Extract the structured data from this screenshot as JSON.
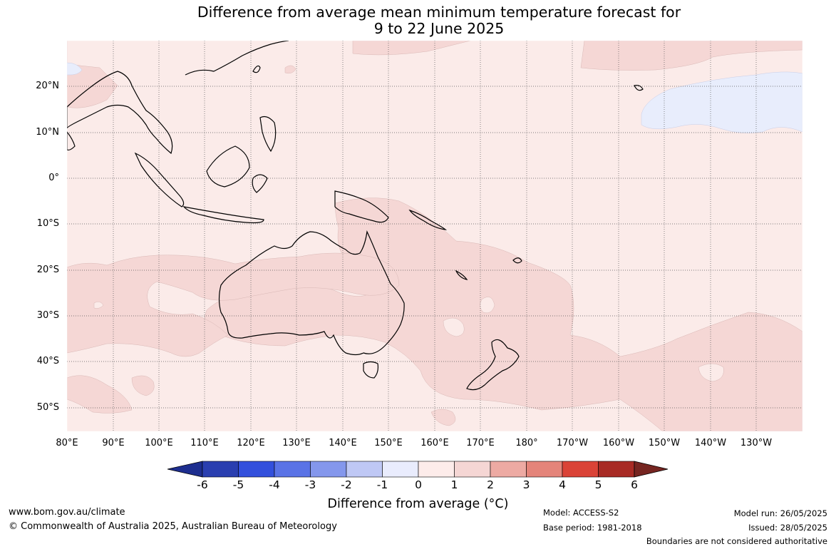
{
  "title_line1": "Difference from average mean minimum temperature forecast for",
  "title_line2": "9 to 22 June 2025",
  "lat_labels": [
    "20°N",
    "10°N",
    "0°",
    "10°S",
    "20°S",
    "30°S",
    "40°S",
    "50°S"
  ],
  "lon_labels": [
    "80°E",
    "90°E",
    "100°E",
    "110°E",
    "120°E",
    "130°E",
    "140°E",
    "150°E",
    "160°E",
    "170°E",
    "180°",
    "170°W",
    "160°W",
    "150°W",
    "140°W",
    "130°W"
  ],
  "colorbar": {
    "ticks": [
      "-6",
      "-5",
      "-4",
      "-3",
      "-2",
      "-1",
      "0",
      "1",
      "2",
      "3",
      "4",
      "5",
      "6"
    ],
    "colors": [
      "#1d2e8f",
      "#2a3fb0",
      "#3350dc",
      "#5a73e6",
      "#8497ec",
      "#bfc8f5",
      "#e9ecfd",
      "#fdecea",
      "#f5d6d4",
      "#edaaa3",
      "#e4847a",
      "#da4337",
      "#a82b25",
      "#762521"
    ],
    "label": "Difference from average (°C)"
  },
  "map_fill": {
    "base": "#fbebe9",
    "warm": "#f5d7d5",
    "cool": "#e8edfc"
  },
  "footer": {
    "website": "www.bom.gov.au/climate",
    "copyright": "© Commonwealth of Australia 2025, Australian Bureau of Meteorology",
    "model": "Model: ACCESS-S2",
    "base_period": "Base period: 1981-2018",
    "model_run": "Model run: 26/05/2025",
    "issued": "Issued: 28/05/2025",
    "disclaimer": "Boundaries are not considered authoritative"
  }
}
